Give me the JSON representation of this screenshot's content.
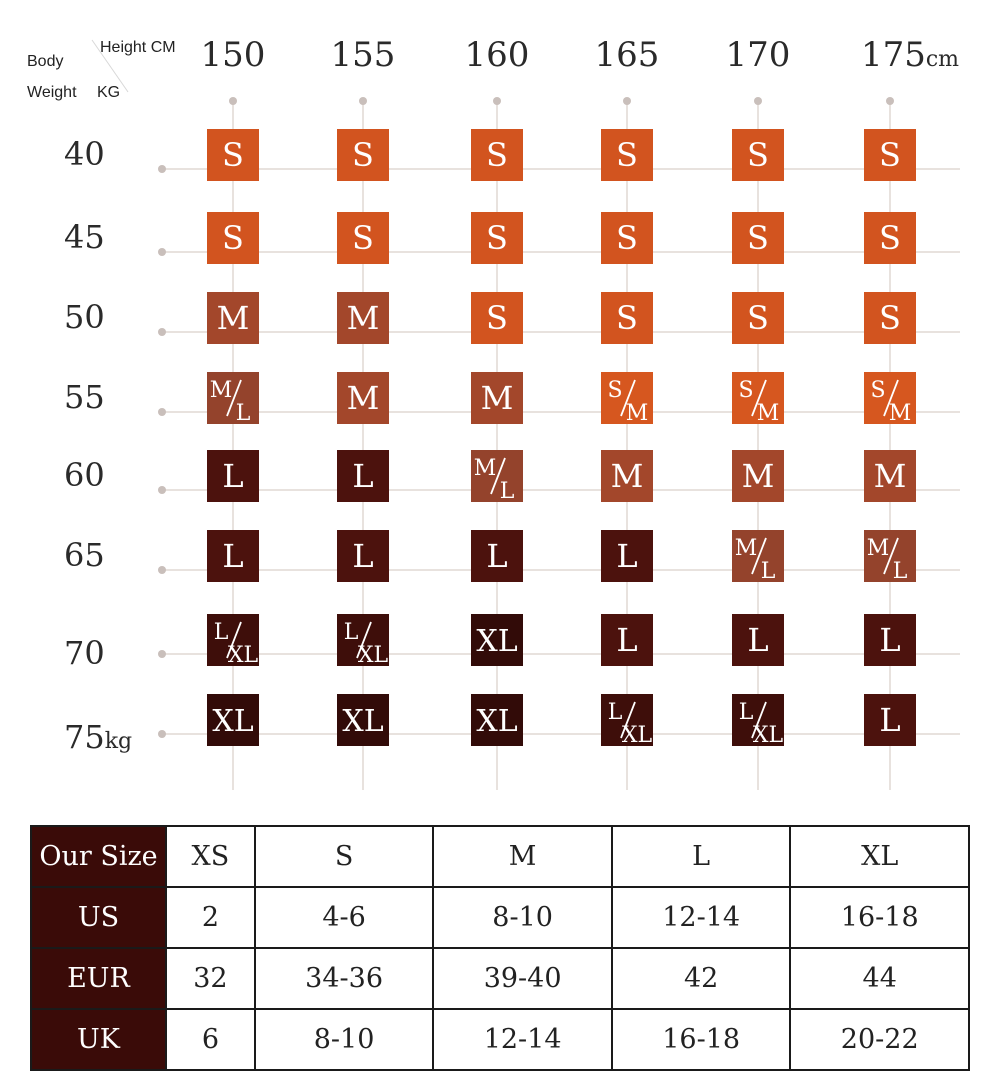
{
  "corner": {
    "body_label": "Body",
    "weight_label": "Weight",
    "weight_unit": "KG",
    "height_label": "Height CM"
  },
  "colors": {
    "S": "#d2541f",
    "S/M": "#d6571f",
    "M": "#a3472b",
    "M/L": "#94432c",
    "L": "#4c120d",
    "L/XL": "#3e0e0a",
    "XL": "#320b08",
    "grid": "#e0d8d4",
    "table_header": "#3a0b08"
  },
  "chart_data": {
    "type": "heatmap",
    "x_axis": {
      "label": "Height CM",
      "ticks": [
        "150",
        "155",
        "160",
        "165",
        "170",
        "175"
      ],
      "values": [
        150,
        155,
        160,
        165,
        170,
        175
      ],
      "unit": "cm"
    },
    "y_axis": {
      "label": "Weight KG",
      "ticks": [
        "40",
        "45",
        "50",
        "55",
        "60",
        "65",
        "70",
        "75"
      ],
      "values": [
        40,
        45,
        50,
        55,
        60,
        65,
        70,
        75
      ],
      "unit": "kg"
    },
    "cells": [
      [
        "S",
        "S",
        "S",
        "S",
        "S",
        "S"
      ],
      [
        "S",
        "S",
        "S",
        "S",
        "S",
        "S"
      ],
      [
        "M",
        "M",
        "S",
        "S",
        "S",
        "S"
      ],
      [
        "M/L",
        "M",
        "M",
        "S/M",
        "S/M",
        "S/M"
      ],
      [
        "L",
        "L",
        "M/L",
        "M",
        "M",
        "M"
      ],
      [
        "L",
        "L",
        "L",
        "L",
        "M/L",
        "M/L"
      ],
      [
        "L/XL",
        "L/XL",
        "XL",
        "L",
        "L",
        "L"
      ],
      [
        "XL",
        "XL",
        "XL",
        "L/XL",
        "L/XL",
        "L"
      ]
    ]
  },
  "size_table": {
    "columns": [
      "XS",
      "S",
      "M",
      "L",
      "XL"
    ],
    "rows": [
      {
        "label": "Our Size",
        "values": [
          "XS",
          "S",
          "M",
          "L",
          "XL"
        ]
      },
      {
        "label": "US",
        "values": [
          "2",
          "4-6",
          "8-10",
          "12-14",
          "16-18"
        ]
      },
      {
        "label": "EUR",
        "values": [
          "32",
          "34-36",
          "39-40",
          "42",
          "44"
        ]
      },
      {
        "label": "UK",
        "values": [
          "6",
          "8-10",
          "12-14",
          "16-18",
          "20-22"
        ]
      }
    ]
  }
}
